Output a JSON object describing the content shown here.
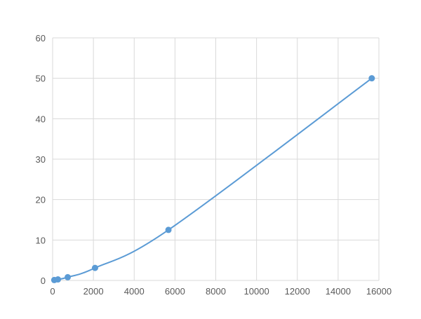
{
  "chart_data": {
    "type": "scatter",
    "title": "",
    "xlabel": "",
    "ylabel": "",
    "xlim": [
      0,
      16000
    ],
    "ylim": [
      0,
      60
    ],
    "xticks": [
      0,
      2000,
      4000,
      6000,
      8000,
      10000,
      12000,
      14000,
      16000
    ],
    "yticks": [
      0,
      10,
      20,
      30,
      40,
      50,
      60
    ],
    "grid": true,
    "smooth_line": true,
    "series": [
      {
        "x": [
          80,
          260,
          740,
          2080,
          5680,
          15650
        ],
        "y": [
          0.1,
          0.25,
          0.8,
          3.1,
          12.5,
          50
        ],
        "color": "#5b9bd5"
      }
    ]
  }
}
